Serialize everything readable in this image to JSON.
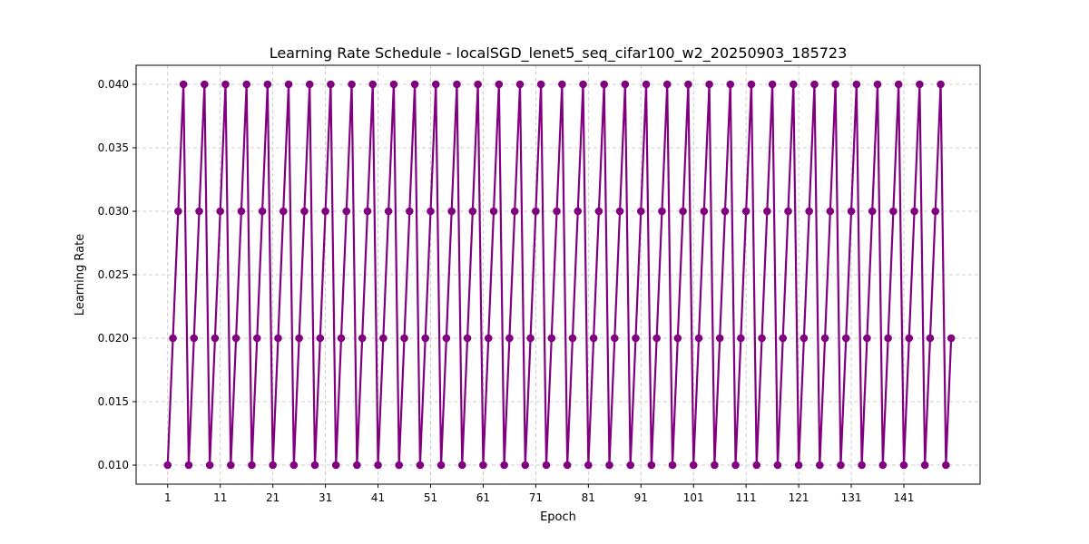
{
  "chart_data": {
    "type": "line",
    "title": "Learning Rate Schedule - localSGD_lenet5_seq_cifar100_w2_20250903_185723",
    "xlabel": "Epoch",
    "ylabel": "Learning Rate",
    "x_range": [
      1,
      150
    ],
    "xlim": [
      -5,
      155.5
    ],
    "ylim": [
      0.0085,
      0.0415
    ],
    "x_ticks": [
      1,
      11,
      21,
      31,
      41,
      51,
      61,
      71,
      81,
      91,
      101,
      111,
      121,
      131,
      141
    ],
    "y_ticks": [
      0.01,
      0.015,
      0.02,
      0.025,
      0.03,
      0.035,
      0.04
    ],
    "y_tick_labels": [
      "0.010",
      "0.015",
      "0.020",
      "0.025",
      "0.030",
      "0.035",
      "0.040"
    ],
    "cycle_pattern": [
      0.01,
      0.02,
      0.03,
      0.04
    ],
    "final_point": {
      "x": 150,
      "y": 0.02
    },
    "grid": true,
    "marker": "circle",
    "color": "#800080"
  }
}
